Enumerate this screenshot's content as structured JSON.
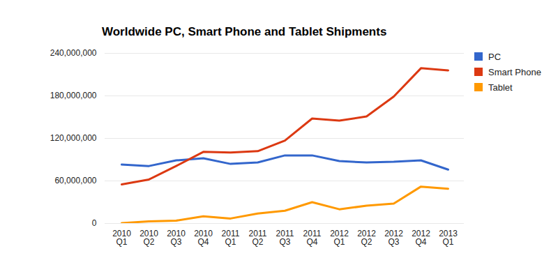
{
  "chart_data": {
    "type": "line",
    "title": "Worldwide PC, Smart Phone and Tablet Shipments",
    "categories": [
      "2010 Q1",
      "2010 Q2",
      "2010 Q3",
      "2010 Q4",
      "2011 Q1",
      "2011 Q2",
      "2011 Q3",
      "2011 Q4",
      "2012 Q1",
      "2012 Q2",
      "2012 Q3",
      "2012 Q4",
      "2013 Q1"
    ],
    "series": [
      {
        "name": "PC",
        "color": "#3366cc",
        "values": [
          83000000,
          81000000,
          89000000,
          92000000,
          84000000,
          86000000,
          96000000,
          96000000,
          88000000,
          86000000,
          87000000,
          89000000,
          76000000
        ]
      },
      {
        "name": "Smart Phone",
        "color": "#dc3912",
        "values": [
          55000000,
          62000000,
          81000000,
          101000000,
          100000000,
          102000000,
          117000000,
          148000000,
          145000000,
          151000000,
          179000000,
          219000000,
          216000000
        ]
      },
      {
        "name": "Tablet",
        "color": "#ff9900",
        "values": [
          500000,
          3000000,
          4000000,
          10000000,
          7000000,
          14000000,
          18000000,
          30000000,
          20000000,
          25000000,
          28000000,
          52000000,
          49000000
        ]
      }
    ],
    "ylim": [
      0,
      240000000
    ],
    "yticks": [
      0,
      {
        "value": 60000000,
        "label": "60,000,000"
      },
      {
        "value": 120000000,
        "label": "120,000,000"
      },
      {
        "value": 180000000,
        "label": "180,000,000"
      },
      {
        "value": 240000000,
        "label": "240,000,000"
      }
    ],
    "grid": true,
    "legend": "right"
  }
}
